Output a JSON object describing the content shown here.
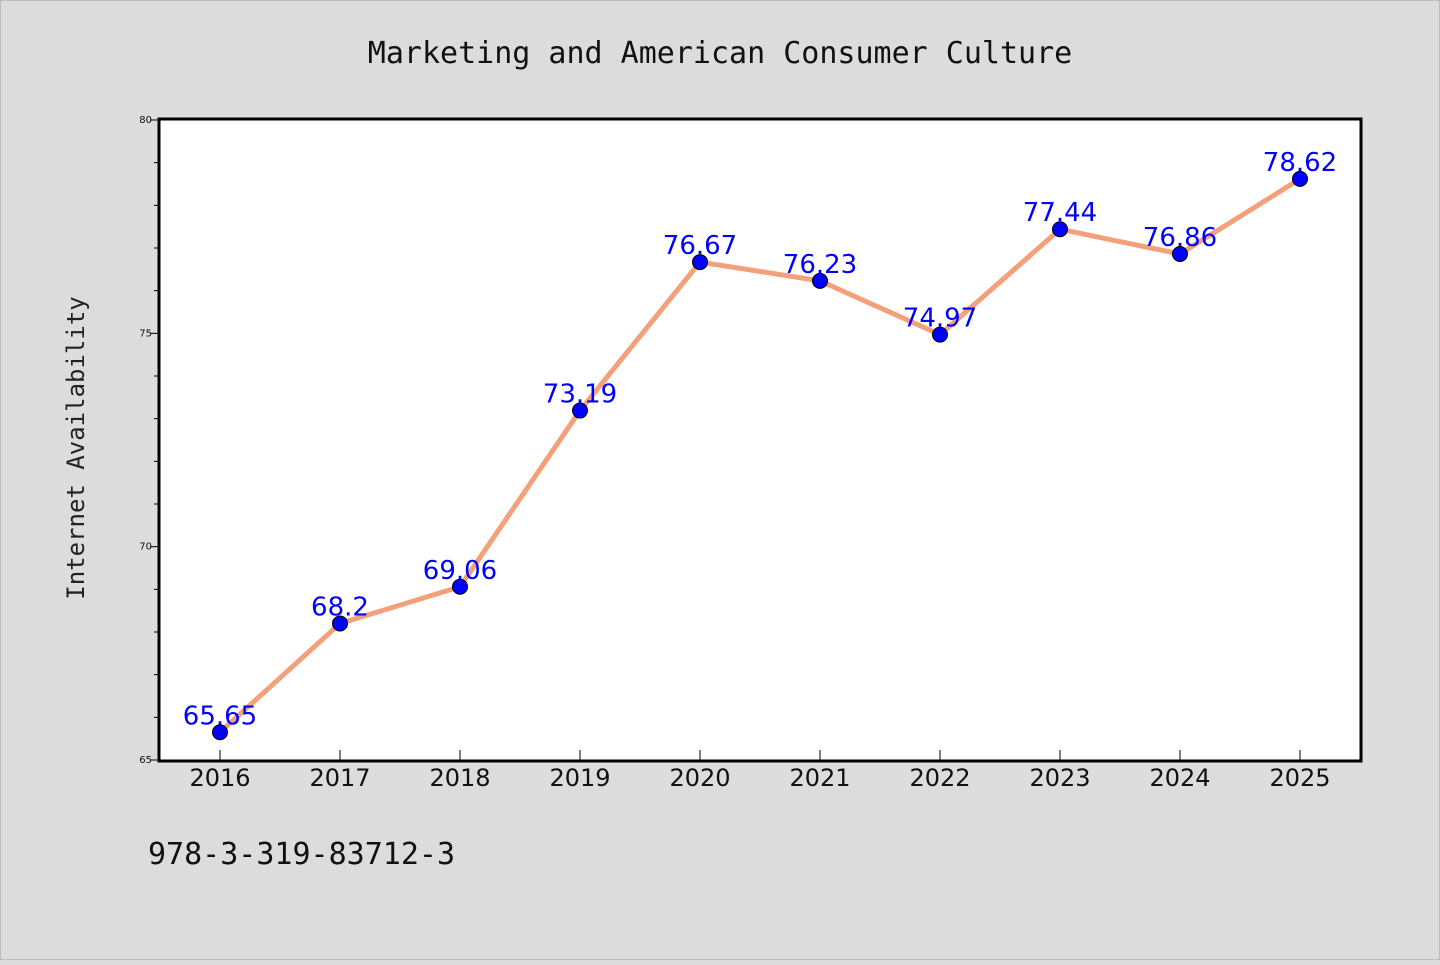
{
  "chart_data": {
    "type": "line",
    "title": "Marketing and American Consumer Culture",
    "xlabel": "",
    "ylabel": "Internet Availability",
    "categories": [
      "2016",
      "2017",
      "2018",
      "2019",
      "2020",
      "2021",
      "2022",
      "2023",
      "2024",
      "2025"
    ],
    "series": [
      {
        "values": [
          65.65,
          68.2,
          69.06,
          73.19,
          76.67,
          76.23,
          74.97,
          77.44,
          76.86,
          78.62
        ]
      }
    ],
    "data_labels": [
      "65.65",
      "68.2",
      "69.06",
      "73.19",
      "76.67",
      "76.23",
      "74.97",
      "77.44",
      "76.86",
      "78.62"
    ],
    "ylim": [
      65,
      80
    ],
    "yticks": [
      "65",
      "70",
      "75",
      "80"
    ],
    "ytick_values": [
      65,
      70,
      75,
      80
    ],
    "grid": false,
    "colors": {
      "background": "#dcdcdc",
      "plot_background": "#ffffff",
      "line": "#f4a07a",
      "marker": "#0000ff",
      "data_label": "#0000ff"
    }
  },
  "footer_text": "978-3-319-83712-3"
}
